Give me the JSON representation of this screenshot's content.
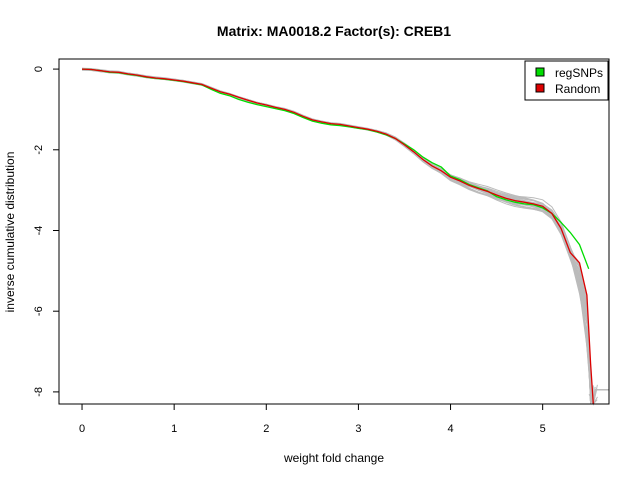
{
  "chart_data": {
    "type": "line",
    "title": "Matrix: MA0018.2 Factor(s): CREB1",
    "xlabel": "weight fold change",
    "ylabel": "inverse cumulative distribution",
    "xlim": [
      -0.25,
      5.72
    ],
    "ylim": [
      -8.3,
      0.25
    ],
    "xticks": [
      "0",
      "1",
      "2",
      "3",
      "4",
      "5"
    ],
    "yticks": [
      "0",
      "-2",
      "-4",
      "-6",
      "-8"
    ],
    "grid": false,
    "legend_position": "top-right",
    "colors": {
      "regSNPs": "#00dd00",
      "Random": "#dd0000",
      "background": "#bbbbbb"
    },
    "series": [
      {
        "name": "regSNPs",
        "color": "#00dd00",
        "x": [
          0.0,
          0.1,
          0.2,
          0.3,
          0.4,
          0.5,
          0.6,
          0.7,
          0.8,
          0.9,
          1.0,
          1.1,
          1.2,
          1.3,
          1.4,
          1.5,
          1.6,
          1.7,
          1.8,
          1.9,
          2.0,
          2.1,
          2.2,
          2.3,
          2.4,
          2.5,
          2.6,
          2.7,
          2.8,
          2.9,
          3.0,
          3.1,
          3.2,
          3.3,
          3.4,
          3.5,
          3.6,
          3.7,
          3.8,
          3.9,
          4.0,
          4.1,
          4.2,
          4.3,
          4.4,
          4.5,
          4.6,
          4.7,
          4.8,
          4.9,
          5.0,
          5.1,
          5.2,
          5.3,
          5.4,
          5.5
        ],
        "y": [
          0,
          -0.01,
          -0.04,
          -0.08,
          -0.09,
          -0.13,
          -0.16,
          -0.2,
          -0.23,
          -0.25,
          -0.28,
          -0.31,
          -0.35,
          -0.39,
          -0.5,
          -0.6,
          -0.66,
          -0.75,
          -0.82,
          -0.88,
          -0.93,
          -0.98,
          -1.03,
          -1.1,
          -1.2,
          -1.29,
          -1.34,
          -1.38,
          -1.4,
          -1.43,
          -1.47,
          -1.5,
          -1.56,
          -1.63,
          -1.72,
          -1.86,
          -2.0,
          -2.18,
          -2.32,
          -2.43,
          -2.65,
          -2.74,
          -2.86,
          -2.94,
          -3.02,
          -3.16,
          -3.24,
          -3.3,
          -3.34,
          -3.36,
          -3.44,
          -3.58,
          -3.8,
          -4.05,
          -4.35,
          -4.95
        ]
      },
      {
        "name": "Random",
        "color": "#dd0000",
        "x": [
          0.0,
          0.1,
          0.2,
          0.3,
          0.4,
          0.5,
          0.6,
          0.7,
          0.8,
          0.9,
          1.0,
          1.1,
          1.2,
          1.3,
          1.4,
          1.5,
          1.6,
          1.7,
          1.8,
          1.9,
          2.0,
          2.1,
          2.2,
          2.3,
          2.4,
          2.5,
          2.6,
          2.7,
          2.8,
          2.9,
          3.0,
          3.1,
          3.2,
          3.3,
          3.4,
          3.5,
          3.6,
          3.7,
          3.8,
          3.9,
          4.0,
          4.1,
          4.2,
          4.3,
          4.4,
          4.5,
          4.6,
          4.7,
          4.8,
          4.9,
          5.0,
          5.1,
          5.2,
          5.3,
          5.4,
          5.48,
          5.52,
          5.55
        ],
        "y": [
          0,
          -0.01,
          -0.04,
          -0.07,
          -0.08,
          -0.12,
          -0.15,
          -0.19,
          -0.22,
          -0.24,
          -0.27,
          -0.3,
          -0.34,
          -0.38,
          -0.47,
          -0.56,
          -0.62,
          -0.7,
          -0.77,
          -0.84,
          -0.89,
          -0.95,
          -1.0,
          -1.07,
          -1.17,
          -1.26,
          -1.31,
          -1.35,
          -1.37,
          -1.41,
          -1.45,
          -1.49,
          -1.54,
          -1.61,
          -1.72,
          -1.88,
          -2.05,
          -2.24,
          -2.4,
          -2.52,
          -2.68,
          -2.77,
          -2.88,
          -2.96,
          -3.03,
          -3.12,
          -3.2,
          -3.26,
          -3.3,
          -3.34,
          -3.4,
          -3.58,
          -3.95,
          -4.55,
          -4.8,
          -5.6,
          -7.3,
          -8.3
        ]
      }
    ]
  }
}
